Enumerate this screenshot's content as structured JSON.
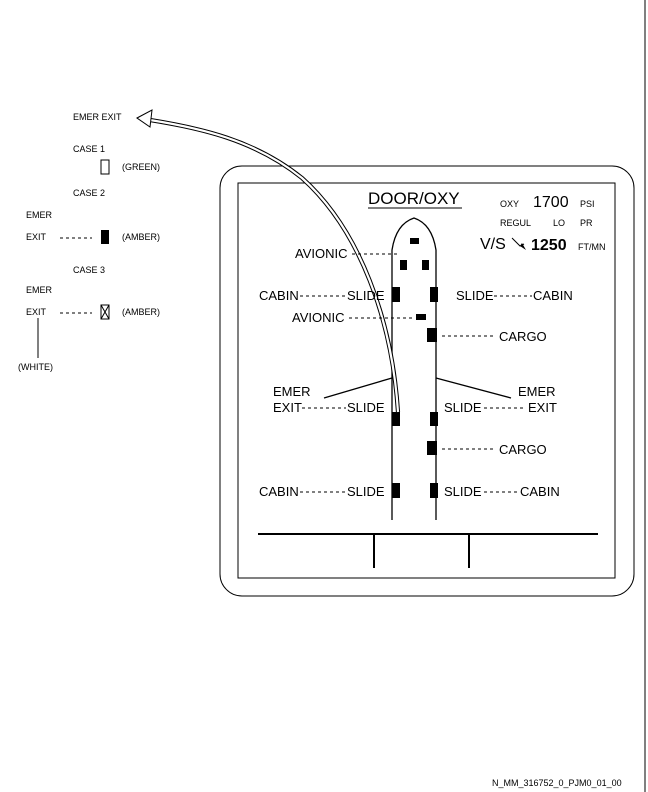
{
  "legend": {
    "title": "EMER EXIT",
    "case1": {
      "label": "CASE 1",
      "color_note": "(GREEN)"
    },
    "case2": {
      "label": "CASE 2",
      "line1": "EMER",
      "line2": "EXIT",
      "color_note": "(AMBER)"
    },
    "case3": {
      "label": "CASE 3",
      "line1": "EMER",
      "line2": "EXIT",
      "color_note": "(AMBER)",
      "x_note": "(WHITE)"
    },
    "colors": {
      "green": "#00a000",
      "amber": "#ffbf00",
      "white": "#ffffff"
    }
  },
  "display": {
    "title": "DOOR/OXY",
    "oxy": {
      "label": "OXY",
      "value": "1700",
      "unit": "PSI"
    },
    "regul": {
      "label": "REGUL",
      "state": "LO",
      "unit": "PR"
    },
    "vs": {
      "label": "V/S",
      "value": "1250",
      "unit": "FT/MN"
    },
    "doors": {
      "avionic_top": "AVIONIC",
      "cabin_fwd_left_a": "CABIN",
      "cabin_fwd_left_b": "SLIDE",
      "cabin_fwd_right_a": "SLIDE",
      "cabin_fwd_right_b": "CABIN",
      "avionic_mid": "AVIONIC",
      "cargo_fwd": "CARGO",
      "emer_left_1": "EMER",
      "emer_left_2": "EXIT",
      "emer_left_slide": "SLIDE",
      "emer_right_1": "EMER",
      "emer_right_2": "EXIT",
      "emer_right_slide": "SLIDE",
      "cargo_aft": "CARGO",
      "cabin_aft_left_a": "CABIN",
      "cabin_aft_left_b": "SLIDE",
      "cabin_aft_right_a": "SLIDE",
      "cabin_aft_right_b": "CABIN"
    }
  },
  "reference": "N_MM_316752_0_PJM0_01_00"
}
